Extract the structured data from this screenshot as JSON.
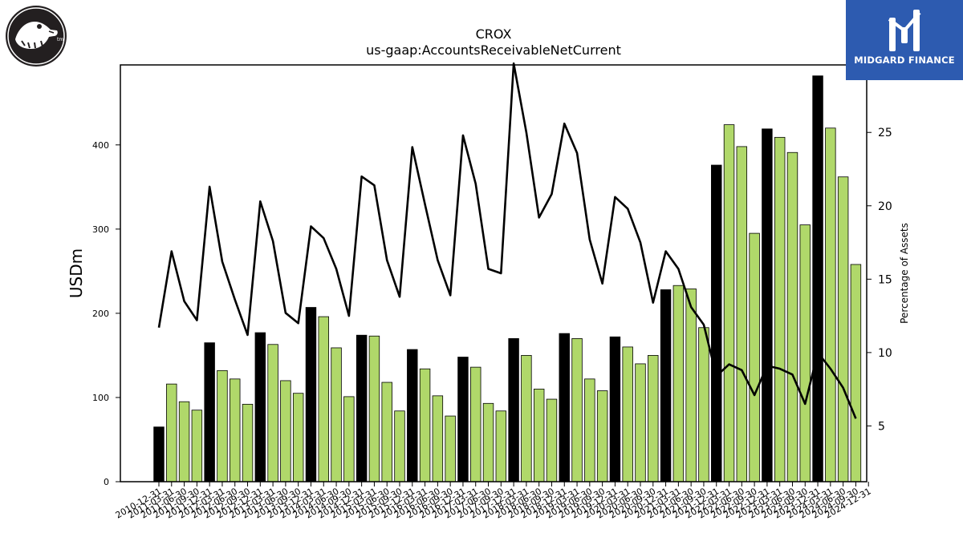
{
  "logo": {
    "name": "crocs-logo",
    "trademark": "tm"
  },
  "brand": {
    "name": "MIDGARD FINANCE",
    "icon": "midgard-finance-logo"
  },
  "chart_data": {
    "type": "bar",
    "title": "CROX",
    "subtitle": "us-gaap:AccountsReceivableNetCurrent",
    "ylabel": "USDm",
    "y2label": "Percentage of Assets",
    "ylim": [
      0,
      495
    ],
    "y2lim": [
      1.2,
      29.6
    ],
    "yticks": [
      0,
      100,
      200,
      300,
      400
    ],
    "y2ticks": [
      5,
      10,
      15,
      20,
      25
    ],
    "colors": {
      "annual": "#000000",
      "quarterly": "#b0d86a",
      "line": "#000000"
    },
    "categories": [
      "2010-12-31",
      "2011-03-31",
      "2011-06-30",
      "2011-09-30",
      "2011-12-31",
      "2012-03-31",
      "2012-06-30",
      "2012-09-30",
      "2012-12-31",
      "2013-03-31",
      "2013-06-30",
      "2013-09-30",
      "2013-12-31",
      "2014-03-31",
      "2014-06-30",
      "2014-09-30",
      "2014-12-31",
      "2015-03-31",
      "2015-06-30",
      "2015-09-30",
      "2015-12-31",
      "2016-03-31",
      "2016-06-30",
      "2016-09-30",
      "2016-12-31",
      "2017-03-31",
      "2017-06-30",
      "2017-09-30",
      "2017-12-31",
      "2018-03-31",
      "2018-06-30",
      "2018-09-30",
      "2018-12-31",
      "2019-03-31",
      "2019-06-30",
      "2019-09-30",
      "2019-12-31",
      "2020-03-31",
      "2020-06-30",
      "2020-09-30",
      "2020-12-31",
      "2021-03-31",
      "2021-06-30",
      "2021-09-30",
      "2021-12-31",
      "2022-03-31",
      "2022-06-30",
      "2022-09-30",
      "2022-12-31",
      "2023-03-31",
      "2023-06-30",
      "2023-09-30",
      "2023-12-31",
      "2024-03-31",
      "2024-06-30",
      "2024-09-30",
      "2024-12-31"
    ],
    "series": [
      {
        "kind": "bar",
        "values": [
          65,
          116,
          95,
          85,
          165,
          132,
          122,
          92,
          177,
          163,
          120,
          105,
          207,
          196,
          159,
          101,
          174,
          173,
          118,
          84,
          157,
          134,
          102,
          78,
          148,
          136,
          93,
          84,
          170,
          150,
          110,
          98,
          176,
          170,
          122,
          108,
          172,
          160,
          140,
          150,
          228,
          233,
          229,
          183,
          376,
          424,
          398,
          295,
          419,
          409,
          391,
          305,
          482,
          420,
          362,
          258,
          0
        ],
        "annual": [
          true,
          false,
          false,
          false,
          true,
          false,
          false,
          false,
          true,
          false,
          false,
          false,
          true,
          false,
          false,
          false,
          true,
          false,
          false,
          false,
          true,
          false,
          false,
          false,
          true,
          false,
          false,
          false,
          true,
          false,
          false,
          false,
          true,
          false,
          false,
          false,
          true,
          false,
          false,
          false,
          true,
          false,
          false,
          false,
          true,
          false,
          false,
          false,
          true,
          false,
          false,
          false,
          true,
          false,
          false,
          false,
          true
        ]
      },
      {
        "kind": "line",
        "values": [
          11.7,
          16.9,
          13.5,
          12.2,
          21.3,
          16.2,
          13.6,
          11.2,
          20.3,
          17.6,
          12.7,
          12.0,
          18.6,
          17.8,
          15.7,
          12.5,
          22.0,
          21.4,
          16.3,
          13.8,
          24.0,
          20.1,
          16.3,
          13.9,
          24.8,
          21.5,
          15.7,
          15.4,
          29.7,
          25.0,
          19.2,
          20.8,
          25.6,
          23.6,
          17.7,
          14.7,
          20.6,
          19.8,
          17.5,
          13.4,
          16.9,
          15.7,
          13.1,
          11.9,
          8.4,
          9.2,
          8.8,
          7.1,
          9.1,
          8.9,
          8.5,
          6.5,
          10.0,
          8.9,
          7.6,
          5.5,
          null
        ]
      }
    ]
  }
}
